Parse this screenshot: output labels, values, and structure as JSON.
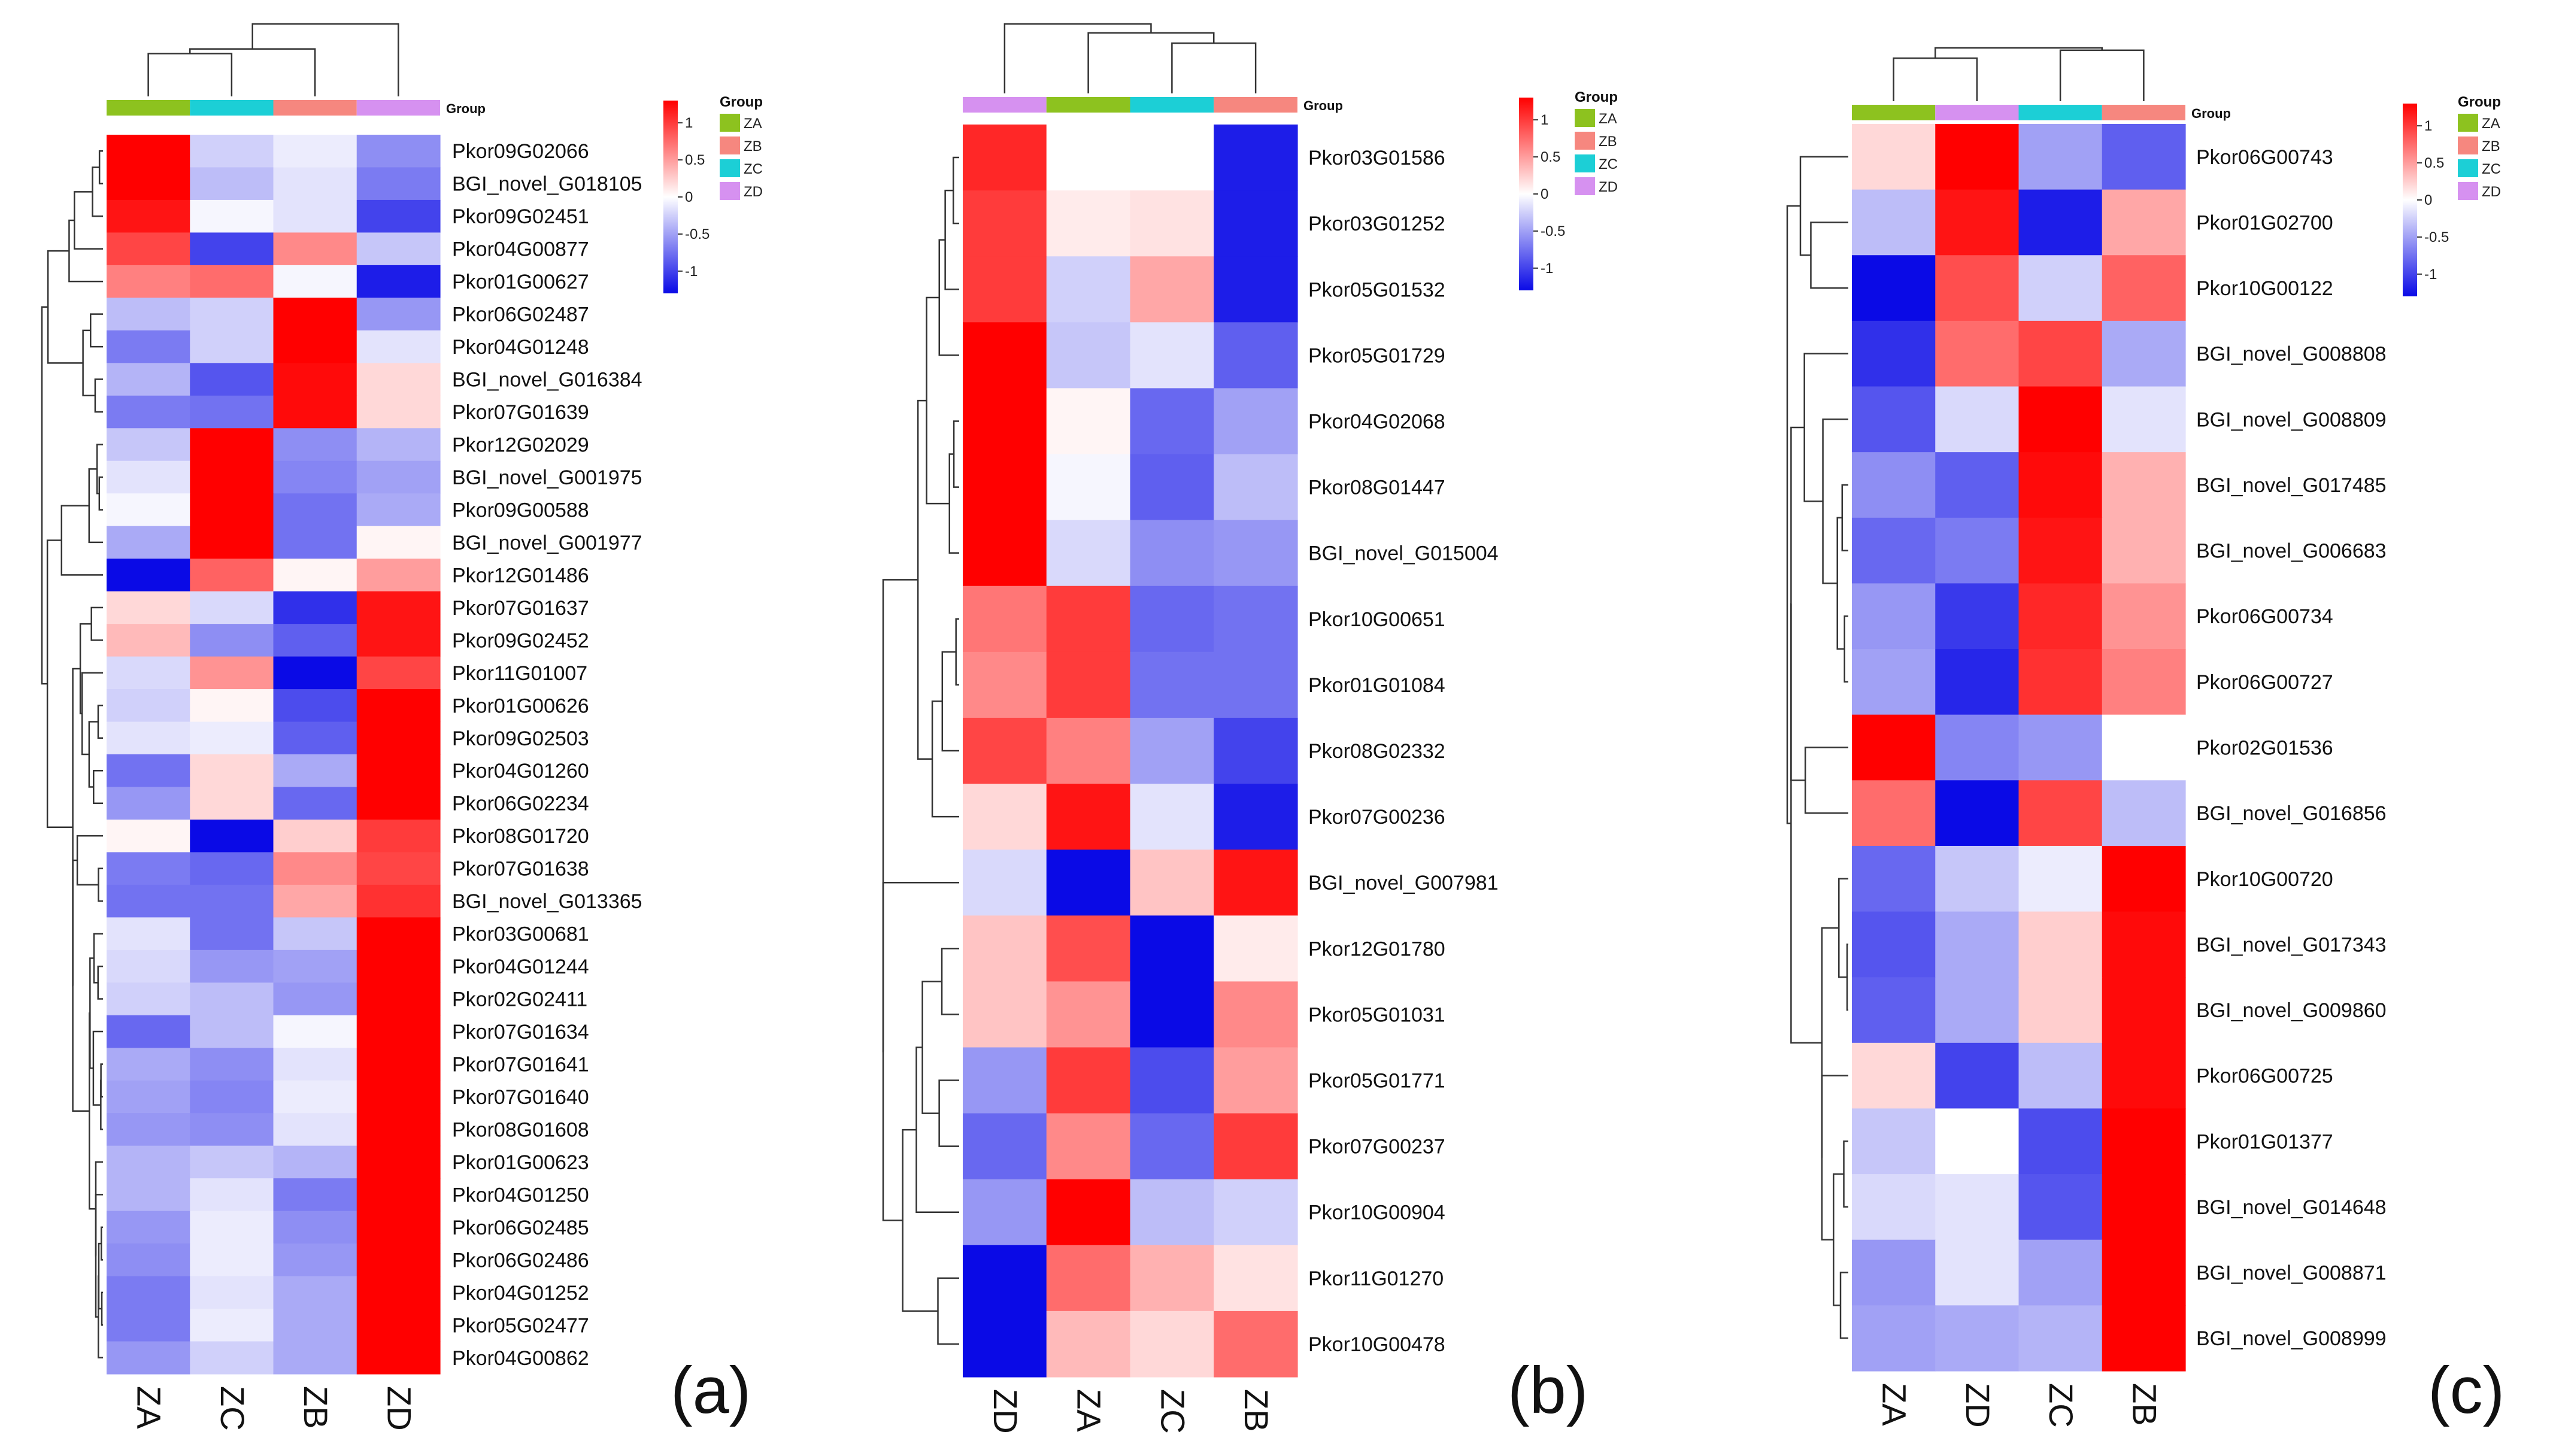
{
  "chart_data": [
    {
      "type": "heatmap",
      "panel_label": "(a)",
      "columns": [
        "ZA",
        "ZC",
        "ZB",
        "ZD"
      ],
      "rows": [
        "Pkor09G02066",
        "BGI_novel_G018105",
        "Pkor09G02451",
        "Pkor04G00877",
        "Pkor01G00627",
        "Pkor06G02487",
        "Pkor04G01248",
        "BGI_novel_G016384",
        "Pkor07G01639",
        "Pkor12G02029",
        "BGI_novel_G001975",
        "Pkor09G00588",
        "BGI_novel_G001977",
        "Pkor12G01486",
        "Pkor07G01637",
        "Pkor09G02452",
        "Pkor11G01007",
        "Pkor01G00626",
        "Pkor09G02503",
        "Pkor04G01260",
        "Pkor06G02234",
        "Pkor08G01720",
        "Pkor07G01638",
        "BGI_novel_G013365",
        "Pkor03G00681",
        "Pkor04G01244",
        "Pkor02G02411",
        "Pkor07G01634",
        "Pkor07G01641",
        "Pkor07G01640",
        "Pkor08G01608",
        "Pkor01G00623",
        "Pkor04G01250",
        "Pkor06G02485",
        "Pkor06G02486",
        "Pkor04G01252",
        "Pkor05G02477",
        "Pkor04G00862"
      ],
      "values": [
        [
          1.3,
          -0.25,
          -0.1,
          -0.6
        ],
        [
          1.3,
          -0.35,
          -0.15,
          -0.7
        ],
        [
          1.2,
          -0.05,
          -0.15,
          -1.0
        ],
        [
          0.95,
          -1.0,
          0.6,
          -0.3
        ],
        [
          0.65,
          0.75,
          -0.05,
          -1.2
        ],
        [
          -0.35,
          -0.25,
          1.4,
          -0.55
        ],
        [
          -0.7,
          -0.25,
          1.4,
          -0.15
        ],
        [
          -0.4,
          -0.9,
          1.25,
          0.2
        ],
        [
          -0.7,
          -0.75,
          1.25,
          0.2
        ],
        [
          -0.3,
          1.4,
          -0.6,
          -0.4
        ],
        [
          -0.15,
          1.35,
          -0.65,
          -0.5
        ],
        [
          -0.05,
          1.3,
          -0.75,
          -0.45
        ],
        [
          -0.45,
          1.3,
          -0.75,
          0.05
        ],
        [
          -1.5,
          0.8,
          0.05,
          0.5
        ],
        [
          0.2,
          -0.2,
          -1.1,
          1.2
        ],
        [
          0.35,
          -0.6,
          -0.85,
          1.2
        ],
        [
          -0.2,
          0.55,
          -1.3,
          0.95
        ],
        [
          -0.25,
          0.05,
          -0.95,
          1.35
        ],
        [
          -0.15,
          -0.1,
          -0.85,
          1.35
        ],
        [
          -0.75,
          0.2,
          -0.45,
          1.35
        ],
        [
          -0.55,
          0.2,
          -0.8,
          1.35
        ],
        [
          0.05,
          -1.5,
          0.25,
          1.0
        ],
        [
          -0.7,
          -0.8,
          0.6,
          0.95
        ],
        [
          -0.75,
          -0.75,
          0.45,
          1.05
        ],
        [
          -0.15,
          -0.75,
          -0.3,
          1.5
        ],
        [
          -0.2,
          -0.55,
          -0.5,
          1.5
        ],
        [
          -0.25,
          -0.35,
          -0.55,
          1.5
        ],
        [
          -0.8,
          -0.35,
          -0.05,
          1.5
        ],
        [
          -0.45,
          -0.6,
          -0.15,
          1.5
        ],
        [
          -0.5,
          -0.65,
          -0.1,
          1.5
        ],
        [
          -0.55,
          -0.6,
          -0.15,
          1.5
        ],
        [
          -0.4,
          -0.3,
          -0.4,
          1.5
        ],
        [
          -0.4,
          -0.15,
          -0.7,
          1.5
        ],
        [
          -0.55,
          -0.1,
          -0.6,
          1.5
        ],
        [
          -0.6,
          -0.1,
          -0.55,
          1.5
        ],
        [
          -0.7,
          -0.15,
          -0.45,
          1.5
        ],
        [
          -0.7,
          -0.1,
          -0.45,
          1.5
        ],
        [
          -0.55,
          -0.25,
          -0.45,
          1.5
        ]
      ],
      "column_group_colors": [
        "#8dc21f",
        "#1ccfd6",
        "#f6877f",
        "#d691f0"
      ],
      "legend": {
        "title": "Group",
        "items": [
          "ZA",
          "ZB",
          "ZC",
          "ZD"
        ],
        "colors": [
          "#8dc21f",
          "#f6877f",
          "#1ccfd6",
          "#d691f0"
        ]
      },
      "colorbar_ticks": [
        "1",
        "0.5",
        "0",
        "-0.5",
        "-1"
      ],
      "color_scale": {
        "low": "#0a0ae6",
        "mid": "#ffffff",
        "high": "#ff0000"
      },
      "group_label": "Group"
    },
    {
      "type": "heatmap",
      "panel_label": "(b)",
      "columns": [
        "ZD",
        "ZA",
        "ZC",
        "ZB"
      ],
      "rows": [
        "Pkor03G01586",
        "Pkor03G01252",
        "Pkor05G01532",
        "Pkor05G01729",
        "Pkor04G02068",
        "Pkor08G01447",
        "BGI_novel_G015004",
        "Pkor10G00651",
        "Pkor01G01084",
        "Pkor08G02332",
        "Pkor07G00236",
        "BGI_novel_G007981",
        "Pkor12G01780",
        "Pkor05G01031",
        "Pkor05G01771",
        "Pkor07G00237",
        "Pkor10G00904",
        "Pkor11G01270",
        "Pkor10G00478"
      ],
      "values": [
        [
          1.1,
          0.0,
          0.0,
          -1.2
        ],
        [
          1.0,
          0.1,
          0.15,
          -1.2
        ],
        [
          1.0,
          -0.25,
          0.45,
          -1.2
        ],
        [
          1.4,
          -0.3,
          -0.15,
          -0.85
        ],
        [
          1.4,
          0.05,
          -0.8,
          -0.5
        ],
        [
          1.4,
          -0.05,
          -0.85,
          -0.35
        ],
        [
          1.45,
          -0.2,
          -0.6,
          -0.55
        ],
        [
          0.7,
          1.0,
          -0.8,
          -0.75
        ],
        [
          0.6,
          1.0,
          -0.75,
          -0.75
        ],
        [
          0.95,
          0.65,
          -0.5,
          -1.0
        ],
        [
          0.2,
          1.2,
          -0.15,
          -1.2
        ],
        [
          -0.2,
          -1.3,
          0.3,
          1.2
        ],
        [
          0.3,
          0.9,
          -1.5,
          0.1
        ],
        [
          0.3,
          0.55,
          -1.5,
          0.6
        ],
        [
          -0.55,
          1.0,
          -0.95,
          0.5
        ],
        [
          -0.8,
          0.6,
          -0.8,
          1.0
        ],
        [
          -0.55,
          1.4,
          -0.35,
          -0.25
        ],
        [
          -1.5,
          0.75,
          0.4,
          0.15
        ],
        [
          -1.5,
          0.35,
          0.2,
          0.75
        ]
      ],
      "column_group_colors": [
        "#d691f0",
        "#8dc21f",
        "#1ccfd6",
        "#f6877f"
      ],
      "legend": {
        "title": "Group",
        "items": [
          "ZA",
          "ZB",
          "ZC",
          "ZD"
        ],
        "colors": [
          "#8dc21f",
          "#f6877f",
          "#1ccfd6",
          "#d691f0"
        ]
      },
      "colorbar_ticks": [
        "1",
        "0.5",
        "0",
        "-0.5",
        "-1"
      ],
      "color_scale": {
        "low": "#0a0ae6",
        "mid": "#ffffff",
        "high": "#ff0000"
      },
      "group_label": "Group"
    },
    {
      "type": "heatmap",
      "panel_label": "(c)",
      "columns": [
        "ZA",
        "ZD",
        "ZC",
        "ZB"
      ],
      "rows": [
        "Pkor06G00743",
        "Pkor01G02700",
        "Pkor10G00122",
        "BGI_novel_G008808",
        "BGI_novel_G008809",
        "BGI_novel_G017485",
        "BGI_novel_G006683",
        "Pkor06G00734",
        "Pkor06G00727",
        "Pkor02G01536",
        "BGI_novel_G016856",
        "Pkor10G00720",
        "BGI_novel_G017343",
        "BGI_novel_G009860",
        "Pkor06G00725",
        "Pkor01G01377",
        "BGI_novel_G014648",
        "BGI_novel_G008871",
        "BGI_novel_G008999"
      ],
      "values": [
        [
          0.2,
          1.3,
          -0.5,
          -0.85
        ],
        [
          -0.35,
          1.2,
          -1.2,
          0.45
        ],
        [
          -1.5,
          0.9,
          -0.25,
          0.8
        ],
        [
          -1.1,
          0.75,
          0.95,
          -0.45
        ],
        [
          -0.9,
          -0.2,
          1.4,
          -0.15
        ],
        [
          -0.6,
          -0.85,
          1.25,
          0.4
        ],
        [
          -0.8,
          -0.7,
          1.2,
          0.4
        ],
        [
          -0.55,
          -1.05,
          1.1,
          0.55
        ],
        [
          -0.5,
          -1.15,
          1.05,
          0.65
        ],
        [
          1.4,
          -0.65,
          -0.55,
          0.0
        ],
        [
          0.75,
          -1.3,
          0.95,
          -0.35
        ],
        [
          -0.8,
          -0.3,
          -0.1,
          1.3
        ],
        [
          -0.9,
          -0.45,
          0.25,
          1.25
        ],
        [
          -0.85,
          -0.45,
          0.25,
          1.25
        ],
        [
          0.2,
          -1.0,
          -0.35,
          1.25
        ],
        [
          -0.3,
          0.0,
          -0.95,
          1.3
        ],
        [
          -0.2,
          -0.15,
          -0.9,
          1.3
        ],
        [
          -0.55,
          -0.15,
          -0.5,
          1.3
        ],
        [
          -0.5,
          -0.45,
          -0.4,
          1.35
        ]
      ],
      "column_group_colors": [
        "#8dc21f",
        "#d691f0",
        "#1ccfd6",
        "#f6877f"
      ],
      "legend": {
        "title": "Group",
        "items": [
          "ZA",
          "ZB",
          "ZC",
          "ZD"
        ],
        "colors": [
          "#8dc21f",
          "#f6877f",
          "#1ccfd6",
          "#d691f0"
        ]
      },
      "colorbar_ticks": [
        "1",
        "0.5",
        "0",
        "-0.5",
        "-1"
      ],
      "color_scale": {
        "low": "#0a0ae6",
        "mid": "#ffffff",
        "high": "#ff0000"
      },
      "group_label": "Group"
    }
  ]
}
